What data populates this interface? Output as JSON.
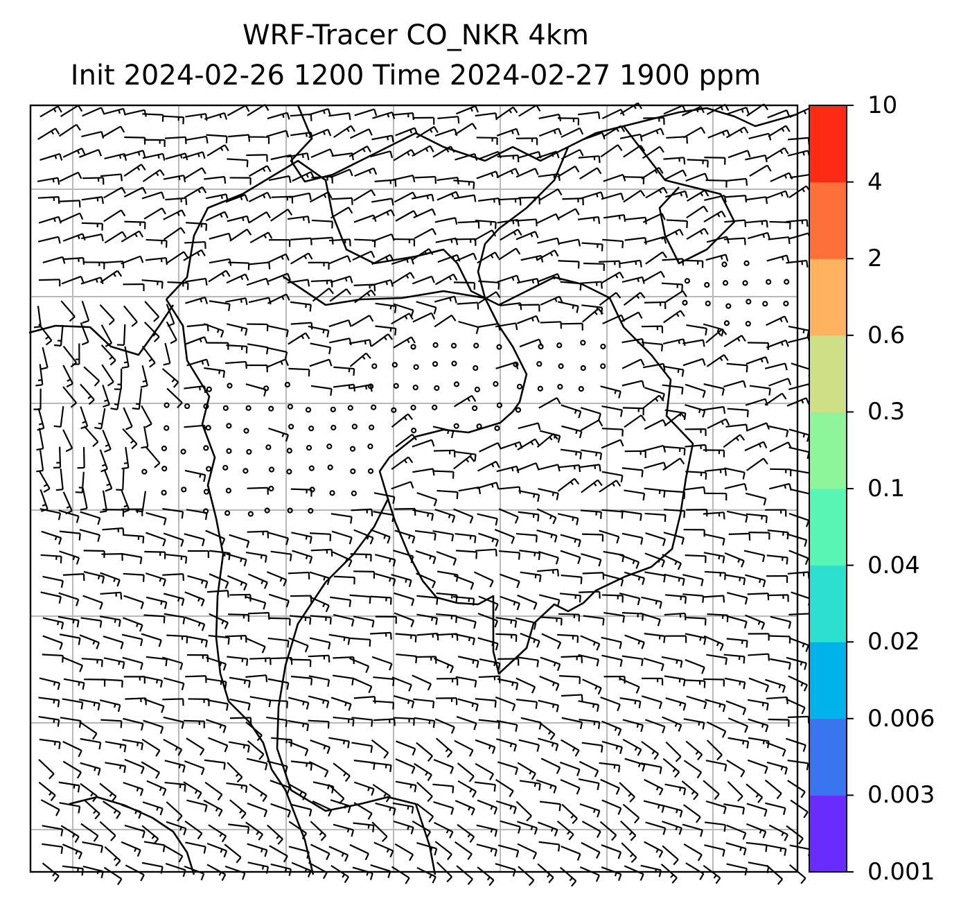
{
  "title": {
    "line1": "WRF-Tracer CO_NKR 4km",
    "line2": "Init 2024-02-26 1200 Time 2024-02-27 1900 ppm"
  },
  "colorbar": {
    "levels": [
      "0.001",
      "0.003",
      "0.006",
      "0.02",
      "0.04",
      "0.1",
      "0.3",
      "0.6",
      "2",
      "4",
      "10"
    ],
    "colors": [
      "#6a2bff",
      "#3a75f0",
      "#00b2ea",
      "#2ddfcf",
      "#58f5b4",
      "#8ff59b",
      "#cfdf85",
      "#ffb25f",
      "#ff6f3a",
      "#ff2a16"
    ]
  },
  "map": {
    "gridline_color": "#b8b8b8",
    "frame_color": "#000000"
  }
}
